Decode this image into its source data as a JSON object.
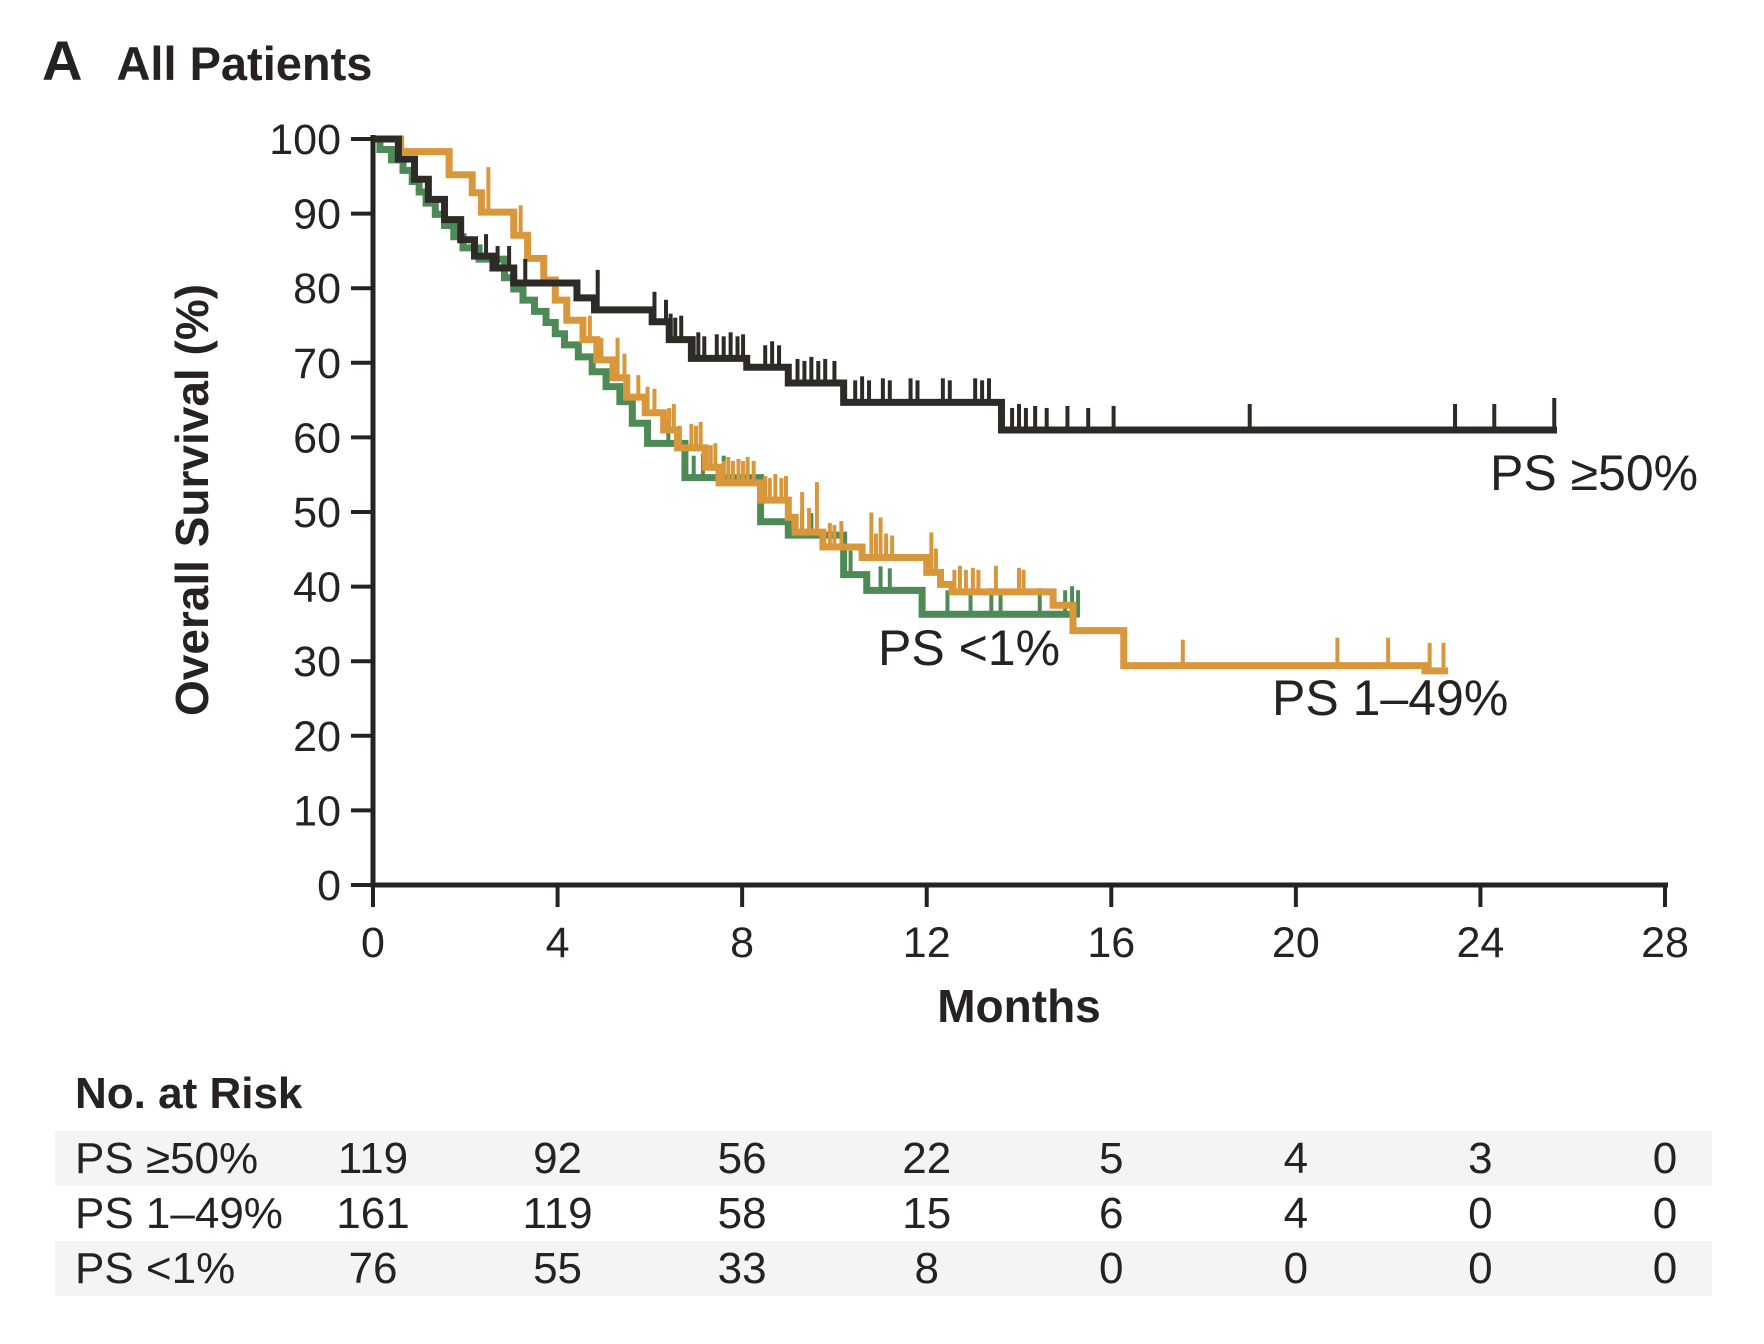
{
  "panel": {
    "letter": "A",
    "title": "All Patients"
  },
  "colors": {
    "text": "#262220",
    "axis": "#262220",
    "background": "#ffffff",
    "stripe": "#f4f4f4",
    "black_series": "#2e2a26",
    "orange_series": "#d9973c",
    "green_series": "#4e8a55"
  },
  "chart_data": {
    "type": "line",
    "subtype": "kaplan-meier-step",
    "title": "All Patients",
    "xlabel": "Months",
    "ylabel": "Overall Survival (%)",
    "xlim": [
      0,
      28
    ],
    "ylim": [
      0,
      100
    ],
    "xticks": [
      0,
      4,
      8,
      12,
      16,
      20,
      24,
      28
    ],
    "yticks": [
      0,
      10,
      20,
      30,
      40,
      50,
      60,
      70,
      80,
      90,
      100
    ],
    "grid": false,
    "legend": "inline-labels",
    "series": [
      {
        "name": "PS ≥50%",
        "color": "#2e2a26",
        "end_month": 25.66,
        "steps": [
          [
            0,
            100
          ],
          [
            0.55,
            97.3
          ],
          [
            0.9,
            94.6
          ],
          [
            1.2,
            91.9
          ],
          [
            1.55,
            89.2
          ],
          [
            1.9,
            86.5
          ],
          [
            2.2,
            84.3
          ],
          [
            2.6,
            82.7
          ],
          [
            3.05,
            80.7
          ],
          [
            4.42,
            78.7
          ],
          [
            4.8,
            77.1
          ],
          [
            6.05,
            75.5
          ],
          [
            6.42,
            73.1
          ],
          [
            6.9,
            70.6
          ],
          [
            8.1,
            69.4
          ],
          [
            9.0,
            67.3
          ],
          [
            10.2,
            64.7
          ],
          [
            13.62,
            61
          ]
        ],
        "censors": [
          [
            2.45,
            22
          ],
          [
            2.7,
            22
          ],
          [
            2.95,
            22
          ],
          [
            3.3,
            24
          ],
          [
            4.87,
            40
          ],
          [
            6.1,
            30
          ],
          [
            6.35,
            22
          ],
          [
            6.45,
            26
          ],
          [
            6.55,
            22
          ],
          [
            6.68,
            24
          ],
          [
            6.95,
            22
          ],
          [
            7.05,
            26
          ],
          [
            7.18,
            22
          ],
          [
            7.45,
            24
          ],
          [
            7.6,
            22
          ],
          [
            7.75,
            26
          ],
          [
            7.9,
            22
          ],
          [
            8.02,
            24
          ],
          [
            8.5,
            22
          ],
          [
            8.65,
            26
          ],
          [
            8.8,
            22
          ],
          [
            9.2,
            24
          ],
          [
            9.35,
            22
          ],
          [
            9.5,
            26
          ],
          [
            9.65,
            22
          ],
          [
            9.8,
            24
          ],
          [
            10.0,
            22
          ],
          [
            10.45,
            22
          ],
          [
            10.6,
            26
          ],
          [
            10.75,
            22
          ],
          [
            11.05,
            24
          ],
          [
            11.2,
            22
          ],
          [
            11.65,
            24
          ],
          [
            11.8,
            22
          ],
          [
            12.35,
            24
          ],
          [
            12.5,
            22
          ],
          [
            13.05,
            24
          ],
          [
            13.2,
            22
          ],
          [
            13.35,
            24
          ],
          [
            13.85,
            22
          ],
          [
            14.0,
            26
          ],
          [
            14.15,
            22
          ],
          [
            14.35,
            24
          ],
          [
            14.6,
            22
          ],
          [
            15.05,
            24
          ],
          [
            15.5,
            22
          ],
          [
            16.05,
            24
          ],
          [
            19.0,
            26
          ],
          [
            23.45,
            26
          ],
          [
            24.3,
            26
          ],
          [
            25.6,
            32
          ]
        ]
      },
      {
        "name": "PS 1–49%",
        "color": "#d9973c",
        "end_month": 23.3,
        "steps": [
          [
            0,
            100
          ],
          [
            0.6,
            98.3
          ],
          [
            1.65,
            95.2
          ],
          [
            2.15,
            92.8
          ],
          [
            2.35,
            90.2
          ],
          [
            3.05,
            87.1
          ],
          [
            3.35,
            84
          ],
          [
            3.7,
            81.1
          ],
          [
            3.95,
            78.4
          ],
          [
            4.2,
            75.7
          ],
          [
            4.55,
            73.1
          ],
          [
            4.85,
            70.4
          ],
          [
            5.2,
            68
          ],
          [
            5.5,
            65.4
          ],
          [
            5.9,
            63.3
          ],
          [
            6.3,
            61
          ],
          [
            6.6,
            58.6
          ],
          [
            7.2,
            56
          ],
          [
            7.5,
            53.9
          ],
          [
            8.4,
            51.6
          ],
          [
            9.0,
            49.3
          ],
          [
            9.15,
            47.3
          ],
          [
            9.75,
            45.3
          ],
          [
            10.6,
            43.9
          ],
          [
            12.0,
            41.9
          ],
          [
            12.3,
            40.3
          ],
          [
            12.55,
            39.3
          ],
          [
            14.74,
            37.5
          ],
          [
            15.17,
            34.1
          ],
          [
            16.27,
            29.4
          ],
          [
            22.8,
            28.7
          ]
        ],
        "censors": [
          [
            2.5,
            45
          ],
          [
            3.2,
            30
          ],
          [
            4.7,
            24
          ],
          [
            4.95,
            22
          ],
          [
            5.3,
            40
          ],
          [
            5.45,
            24
          ],
          [
            5.75,
            22
          ],
          [
            5.95,
            26
          ],
          [
            6.1,
            24
          ],
          [
            6.42,
            22
          ],
          [
            6.52,
            26
          ],
          [
            6.65,
            22
          ],
          [
            6.9,
            24
          ],
          [
            7.0,
            22
          ],
          [
            7.1,
            26
          ],
          [
            7.32,
            22
          ],
          [
            7.42,
            24
          ],
          [
            7.6,
            22
          ],
          [
            7.7,
            26
          ],
          [
            7.8,
            22
          ],
          [
            7.92,
            24
          ],
          [
            8.02,
            22
          ],
          [
            8.12,
            26
          ],
          [
            8.25,
            22
          ],
          [
            8.5,
            24
          ],
          [
            8.6,
            22
          ],
          [
            8.72,
            26
          ],
          [
            8.85,
            22
          ],
          [
            8.95,
            24
          ],
          [
            9.3,
            40
          ],
          [
            9.45,
            24
          ],
          [
            9.62,
            50
          ],
          [
            9.9,
            24
          ],
          [
            10.0,
            22
          ],
          [
            10.15,
            26
          ],
          [
            10.8,
            45
          ],
          [
            10.9,
            24
          ],
          [
            11.0,
            40
          ],
          [
            11.12,
            24
          ],
          [
            11.25,
            22
          ],
          [
            12.1,
            40
          ],
          [
            12.2,
            24
          ],
          [
            12.6,
            22
          ],
          [
            12.72,
            26
          ],
          [
            12.85,
            22
          ],
          [
            13.0,
            24
          ],
          [
            13.12,
            22
          ],
          [
            13.5,
            26
          ],
          [
            14.0,
            24
          ],
          [
            14.1,
            22
          ],
          [
            17.55,
            26
          ],
          [
            20.9,
            28
          ],
          [
            22.0,
            28
          ],
          [
            22.9,
            28
          ],
          [
            23.2,
            28
          ]
        ]
      },
      {
        "name": "PS <1%",
        "color": "#4e8a55",
        "end_month": 15.3,
        "steps": [
          [
            0,
            100
          ],
          [
            0.15,
            98.6
          ],
          [
            0.4,
            97.2
          ],
          [
            0.65,
            95.8
          ],
          [
            0.85,
            94.3
          ],
          [
            1.0,
            92.9
          ],
          [
            1.15,
            91.4
          ],
          [
            1.35,
            89.9
          ],
          [
            1.55,
            88.4
          ],
          [
            1.75,
            86.9
          ],
          [
            1.95,
            85.4
          ],
          [
            2.3,
            83.9
          ],
          [
            2.85,
            81.4
          ],
          [
            3.05,
            79.9
          ],
          [
            3.25,
            78.4
          ],
          [
            3.5,
            76.9
          ],
          [
            3.75,
            75.4
          ],
          [
            3.95,
            73.9
          ],
          [
            4.15,
            72.4
          ],
          [
            4.45,
            70.8
          ],
          [
            4.75,
            68.8
          ],
          [
            5.05,
            66.8
          ],
          [
            5.35,
            64.8
          ],
          [
            5.62,
            61.9
          ],
          [
            5.95,
            59.2
          ],
          [
            6.76,
            54.6
          ],
          [
            8.4,
            48.7
          ],
          [
            9.0,
            46.9
          ],
          [
            10.2,
            41.6
          ],
          [
            10.7,
            39.5
          ],
          [
            11.9,
            36.3
          ]
        ],
        "censors": [
          [
            6.4,
            24
          ],
          [
            6.95,
            22
          ],
          [
            7.15,
            24
          ],
          [
            7.6,
            22
          ],
          [
            9.3,
            24
          ],
          [
            9.5,
            22
          ],
          [
            10.35,
            24
          ],
          [
            11.0,
            24
          ],
          [
            11.2,
            22
          ],
          [
            12.45,
            24
          ],
          [
            12.95,
            24
          ],
          [
            13.4,
            26
          ],
          [
            13.6,
            22
          ],
          [
            14.45,
            26
          ],
          [
            15.0,
            24
          ],
          [
            15.15,
            28
          ],
          [
            15.28,
            24
          ]
        ]
      }
    ]
  },
  "at_risk": {
    "heading": "No. at Risk",
    "time_points": [
      0,
      4,
      8,
      12,
      16,
      20,
      24,
      28
    ],
    "rows": [
      {
        "label": "PS ≥50%",
        "values": [
          119,
          92,
          56,
          22,
          5,
          4,
          3,
          0
        ]
      },
      {
        "label": "PS 1–49%",
        "values": [
          161,
          119,
          58,
          15,
          6,
          4,
          0,
          0
        ]
      },
      {
        "label": "PS <1%",
        "values": [
          76,
          55,
          33,
          8,
          0,
          0,
          0,
          0
        ]
      }
    ]
  }
}
